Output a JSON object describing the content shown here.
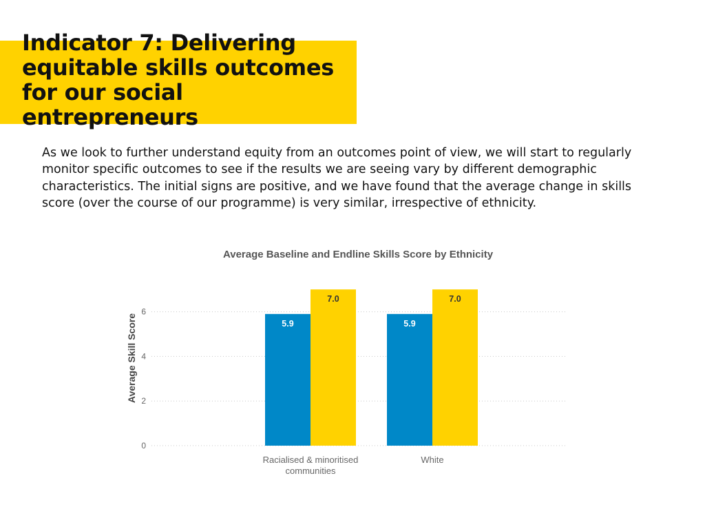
{
  "header": {
    "title": "Indicator 7: Delivering equitable skills outcomes for our social entrepreneurs"
  },
  "body": {
    "paragraph": "As we look to further understand equity from an outcomes point of view, we will start to regularly monitor specific outcomes to see if the results we are seeing vary by different demographic characteristics.  The initial signs are positive, and we have found that the average change in skills score (over the course of our programme) is very similar, irrespective of ethnicity."
  },
  "colors": {
    "accent": "#FFD200",
    "baseline": "#0088C8",
    "endline": "#FFD200"
  },
  "chart_data": {
    "type": "bar",
    "title": "Average Baseline and Endline Skills Score by Ethnicity",
    "xlabel": "",
    "ylabel": "Average Skill Score",
    "ylim": [
      0,
      7.2
    ],
    "yticks": [
      "0",
      "2",
      "4",
      "6"
    ],
    "grid": true,
    "legend": "none",
    "categories": [
      [
        "Racialised & minoritised",
        "communities"
      ],
      [
        "White"
      ]
    ],
    "series": [
      {
        "values": [
          5.9,
          5.9
        ],
        "labels": [
          "5.9",
          "5.9"
        ],
        "color": "#0088C8"
      },
      {
        "values": [
          7.0,
          7.0
        ],
        "labels": [
          "7.0",
          "7.0"
        ],
        "color": "#FFD200"
      }
    ]
  }
}
